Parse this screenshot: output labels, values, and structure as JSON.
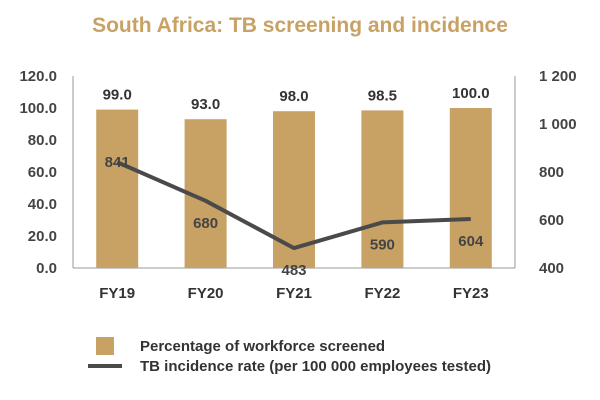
{
  "chart_data": {
    "type": "bar+line",
    "title": "South Africa: TB screening and incidence",
    "categories": [
      "FY19",
      "FY20",
      "FY21",
      "FY22",
      "FY23"
    ],
    "series": [
      {
        "name": "Percentage of workforce screened",
        "type": "bar",
        "axis": "left",
        "values": [
          99.0,
          93.0,
          98.0,
          98.5,
          100.0
        ],
        "labels": [
          "99.0",
          "93.0",
          "98.0",
          "98.5",
          "100.0"
        ],
        "color": "#c8a165"
      },
      {
        "name": "TB incidence rate (per 100 000 employees tested)",
        "type": "line",
        "axis": "right",
        "values": [
          841,
          680,
          483,
          590,
          604
        ],
        "labels": [
          "841",
          "680",
          "483",
          "590",
          "604"
        ],
        "color": "#4a4a4a"
      }
    ],
    "y_left": {
      "min": 0,
      "max": 120,
      "ticks": [
        "0.0",
        "20.0",
        "40.0",
        "60.0",
        "80.0",
        "100.0",
        "120.0"
      ]
    },
    "y_right": {
      "min": 400,
      "max": 1200,
      "ticks": [
        "400",
        "600",
        "800",
        "1 000",
        "1 200"
      ]
    },
    "legend_position": "bottom"
  }
}
